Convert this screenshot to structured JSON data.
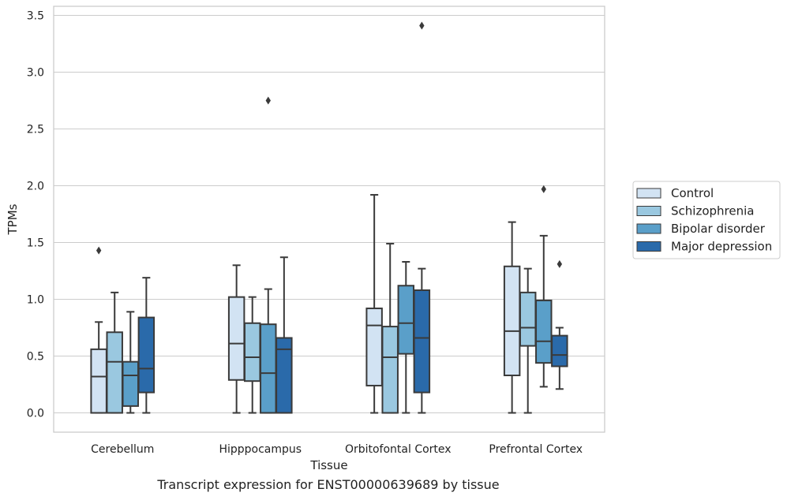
{
  "caption": "Transcript expression for ENST00000639689 by tissue",
  "chart_data": {
    "type": "box",
    "xlabel": "Tissue",
    "ylabel": "TPMs",
    "ylim": [
      -0.17,
      3.58
    ],
    "yticks": [
      0.0,
      0.5,
      1.0,
      1.5,
      2.0,
      2.5,
      3.0,
      3.5
    ],
    "ytick_labels": [
      "0.0",
      "0.5",
      "1.0",
      "1.5",
      "2.0",
      "2.5",
      "3.0",
      "3.5"
    ],
    "grid": true,
    "legend_position": "right",
    "categories": [
      "Cerebellum",
      "Hipppocampus",
      "Orbitofontal Cortex",
      "Prefrontal Cortex"
    ],
    "series": [
      {
        "name": "Control",
        "color": "#d2e3f3",
        "boxes": [
          {
            "whislo": 0.0,
            "q1": 0.0,
            "med": 0.32,
            "q3": 0.56,
            "whishi": 0.8,
            "fliers": [
              1.43
            ]
          },
          {
            "whislo": 0.0,
            "q1": 0.29,
            "med": 0.61,
            "q3": 1.02,
            "whishi": 1.3,
            "fliers": []
          },
          {
            "whislo": 0.0,
            "q1": 0.24,
            "med": 0.77,
            "q3": 0.92,
            "whishi": 1.92,
            "fliers": []
          },
          {
            "whislo": 0.0,
            "q1": 0.33,
            "med": 0.72,
            "q3": 1.29,
            "whishi": 1.68,
            "fliers": []
          }
        ]
      },
      {
        "name": "Schizophrenia",
        "color": "#9ac8e0",
        "boxes": [
          {
            "whislo": 0.0,
            "q1": 0.0,
            "med": 0.45,
            "q3": 0.71,
            "whishi": 1.06,
            "fliers": []
          },
          {
            "whislo": 0.0,
            "q1": 0.28,
            "med": 0.49,
            "q3": 0.79,
            "whishi": 1.02,
            "fliers": []
          },
          {
            "whislo": 0.0,
            "q1": 0.0,
            "med": 0.49,
            "q3": 0.76,
            "whishi": 1.49,
            "fliers": []
          },
          {
            "whislo": 0.0,
            "q1": 0.59,
            "med": 0.75,
            "q3": 1.06,
            "whishi": 1.27,
            "fliers": []
          }
        ]
      },
      {
        "name": "Bipolar disorder",
        "color": "#5a9fc9",
        "boxes": [
          {
            "whislo": 0.0,
            "q1": 0.06,
            "med": 0.33,
            "q3": 0.45,
            "whishi": 0.89,
            "fliers": []
          },
          {
            "whislo": 0.0,
            "q1": 0.0,
            "med": 0.35,
            "q3": 0.78,
            "whishi": 1.09,
            "fliers": [
              2.75
            ]
          },
          {
            "whislo": 0.0,
            "q1": 0.52,
            "med": 0.79,
            "q3": 1.12,
            "whishi": 1.33,
            "fliers": []
          },
          {
            "whislo": 0.23,
            "q1": 0.44,
            "med": 0.63,
            "q3": 0.99,
            "whishi": 1.56,
            "fliers": [
              1.97
            ]
          }
        ]
      },
      {
        "name": "Major depression",
        "color": "#2a6aaa",
        "boxes": [
          {
            "whislo": 0.0,
            "q1": 0.18,
            "med": 0.39,
            "q3": 0.84,
            "whishi": 1.19,
            "fliers": []
          },
          {
            "whislo": 0.0,
            "q1": 0.0,
            "med": 0.56,
            "q3": 0.66,
            "whishi": 1.37,
            "fliers": []
          },
          {
            "whislo": 0.0,
            "q1": 0.18,
            "med": 0.66,
            "q3": 1.08,
            "whishi": 1.27,
            "fliers": [
              3.41
            ]
          },
          {
            "whislo": 0.21,
            "q1": 0.41,
            "med": 0.51,
            "q3": 0.68,
            "whishi": 0.75,
            "fliers": [
              1.31
            ]
          }
        ]
      }
    ]
  }
}
